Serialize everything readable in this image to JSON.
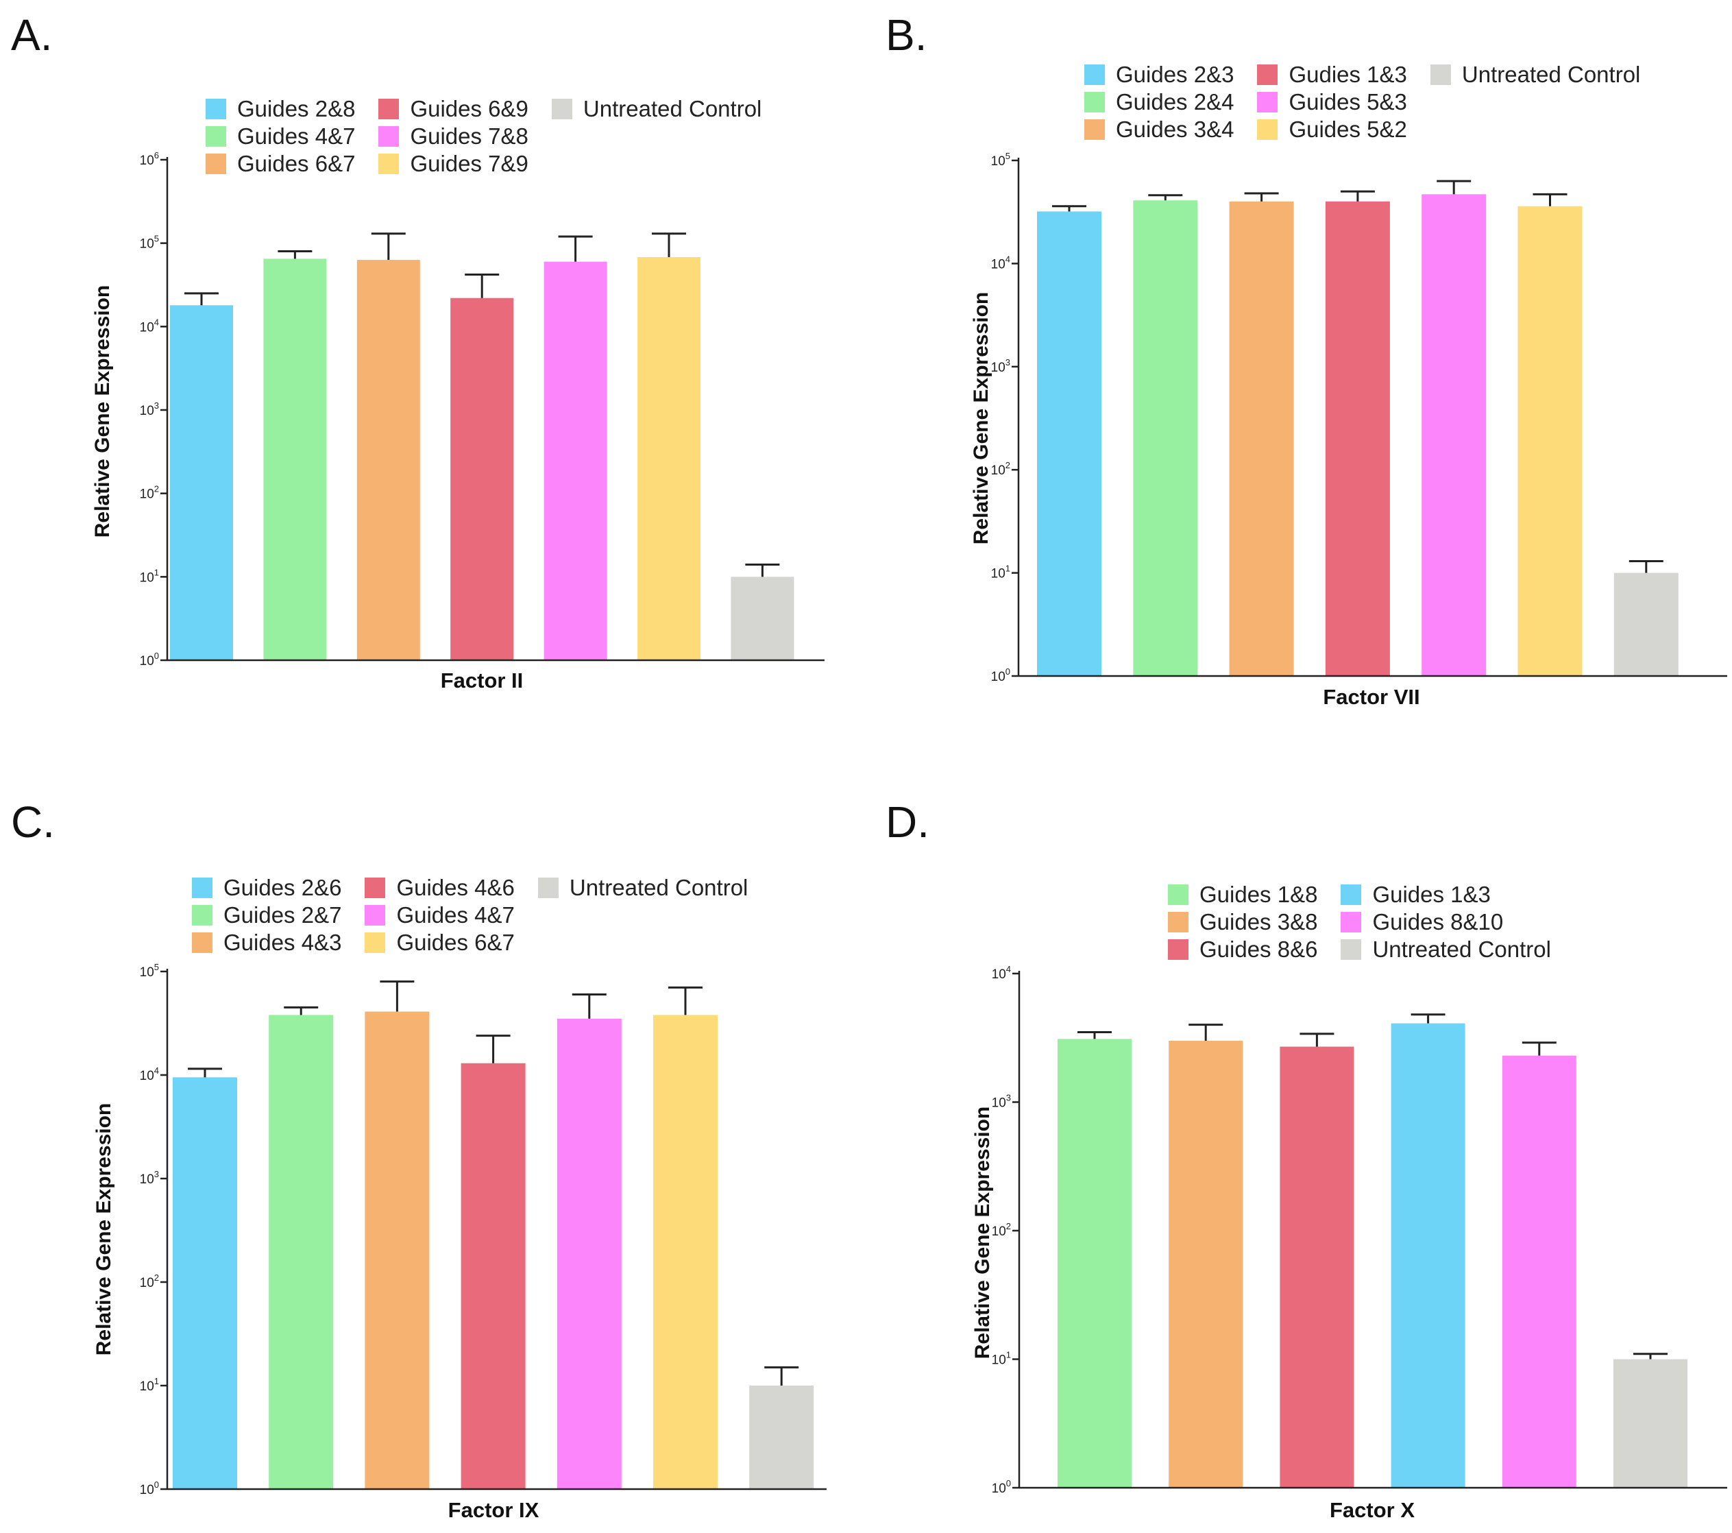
{
  "colors": {
    "blue": "#6dd3f7",
    "green": "#96f0a0",
    "orange": "#f6b270",
    "red": "#e96b7b",
    "magenta": "#fd85fb",
    "yellow": "#fddb78",
    "gray": "#d5d5d2",
    "axis": "#222222"
  },
  "chart_data": [
    {
      "type": "bar",
      "panel_label": "A.",
      "title": "",
      "xlabel": "Factor II",
      "ylabel": "Relative Gene Expression",
      "yscale": "log",
      "ylim": [
        1,
        1000000
      ],
      "yticks": [
        {
          "base": "10",
          "exp": "0"
        },
        {
          "base": "10",
          "exp": "1"
        },
        {
          "base": "10",
          "exp": "2"
        },
        {
          "base": "10",
          "exp": "3"
        },
        {
          "base": "10",
          "exp": "4"
        },
        {
          "base": "10",
          "exp": "5"
        },
        {
          "base": "10",
          "exp": "6"
        }
      ],
      "legend_cols": 3,
      "legend": [
        "Guides 2&8",
        "Guides 4&7",
        "Guides 6&7",
        "Guides 6&9",
        "Guides 7&8",
        "Guides 7&9",
        "Untreated Control"
      ],
      "legend_colors": [
        "blue",
        "green",
        "orange",
        "red",
        "magenta",
        "yellow",
        "gray"
      ],
      "categories": [
        "Guides 2&8",
        "Guides 4&7",
        "Guides 6&7",
        "Guides 6&9",
        "Guides 7&8",
        "Guides 7&9",
        "Untreated Control"
      ],
      "bar_colors": [
        "blue",
        "green",
        "orange",
        "red",
        "magenta",
        "yellow",
        "gray"
      ],
      "values": [
        18000,
        65000,
        63000,
        22000,
        60000,
        68000,
        10
      ],
      "error_upper": [
        25000,
        80000,
        130000,
        42000,
        120000,
        130000,
        14
      ]
    },
    {
      "type": "bar",
      "panel_label": "B.",
      "title": "",
      "xlabel": "Factor VII",
      "ylabel": "Relative Gene Expression",
      "yscale": "log",
      "ylim": [
        1,
        100000
      ],
      "yticks": [
        {
          "base": "10",
          "exp": "0"
        },
        {
          "base": "10",
          "exp": "1"
        },
        {
          "base": "10",
          "exp": "2"
        },
        {
          "base": "10",
          "exp": "3"
        },
        {
          "base": "10",
          "exp": "4"
        },
        {
          "base": "10",
          "exp": "5"
        }
      ],
      "legend_cols": 3,
      "legend": [
        "Guides 2&3",
        "Guides 2&4",
        "Guides 3&4",
        "Gudies 1&3",
        "Guides 5&3",
        "Guides 5&2",
        "Untreated Control"
      ],
      "legend_colors": [
        "blue",
        "green",
        "orange",
        "red",
        "magenta",
        "yellow",
        "gray"
      ],
      "categories": [
        "Guides 2&3",
        "Guides 2&4",
        "Guides 3&4",
        "Gudies 1&3",
        "Guides 5&3",
        "Guides 5&2",
        "Untreated Control"
      ],
      "bar_colors": [
        "blue",
        "green",
        "orange",
        "red",
        "magenta",
        "yellow",
        "gray"
      ],
      "values": [
        32000,
        41000,
        40000,
        40000,
        47000,
        36000,
        10
      ],
      "error_upper": [
        36000,
        46000,
        48000,
        50000,
        63000,
        47000,
        13
      ]
    },
    {
      "type": "bar",
      "panel_label": "C.",
      "title": "",
      "xlabel": "Factor IX",
      "ylabel": "Relative Gene Expression",
      "yscale": "log",
      "ylim": [
        1,
        100000
      ],
      "yticks": [
        {
          "base": "10",
          "exp": "0"
        },
        {
          "base": "10",
          "exp": "1"
        },
        {
          "base": "10",
          "exp": "2"
        },
        {
          "base": "10",
          "exp": "3"
        },
        {
          "base": "10",
          "exp": "4"
        },
        {
          "base": "10",
          "exp": "5"
        }
      ],
      "legend_cols": 3,
      "legend": [
        "Guides 2&6",
        "Guides 2&7",
        "Guides 4&3",
        "Guides 4&6",
        "Guides 4&7",
        "Guides 6&7",
        "Untreated Control"
      ],
      "legend_colors": [
        "blue",
        "green",
        "orange",
        "red",
        "magenta",
        "yellow",
        "gray"
      ],
      "categories": [
        "Guides 2&6",
        "Guides 2&7",
        "Guides 4&3",
        "Guides 4&6",
        "Guides 4&7",
        "Guides 6&7",
        "Untreated Control"
      ],
      "bar_colors": [
        "blue",
        "green",
        "orange",
        "red",
        "magenta",
        "yellow",
        "gray"
      ],
      "values": [
        9500,
        38000,
        41000,
        13000,
        35000,
        38000,
        10
      ],
      "error_upper": [
        11500,
        45000,
        80000,
        24000,
        60000,
        70000,
        15
      ]
    },
    {
      "type": "bar",
      "panel_label": "D.",
      "title": "",
      "xlabel": "Factor X",
      "ylabel": "Relative Gene Expression",
      "yscale": "log",
      "ylim": [
        1,
        10000
      ],
      "yticks": [
        {
          "base": "10",
          "exp": "0"
        },
        {
          "base": "10",
          "exp": "1"
        },
        {
          "base": "10",
          "exp": "2"
        },
        {
          "base": "10",
          "exp": "3"
        },
        {
          "base": "10",
          "exp": "4"
        }
      ],
      "legend_cols": 2,
      "legend": [
        "Guides 1&8",
        "Guides 3&8",
        "Guides 8&6",
        "Guides 1&3",
        "Guides 8&10",
        "Untreated Control"
      ],
      "legend_colors": [
        "green",
        "orange",
        "red",
        "blue",
        "magenta",
        "gray"
      ],
      "categories": [
        "Guides 1&8",
        "Guides 3&8",
        "Guides 8&6",
        "Guides 1&3",
        "Guides 8&10",
        "Untreated Control"
      ],
      "bar_colors": [
        "green",
        "orange",
        "red",
        "blue",
        "magenta",
        "gray"
      ],
      "values": [
        3100,
        3000,
        2700,
        4100,
        2300,
        10
      ],
      "error_upper": [
        3500,
        4000,
        3400,
        4800,
        2900,
        11
      ]
    }
  ]
}
